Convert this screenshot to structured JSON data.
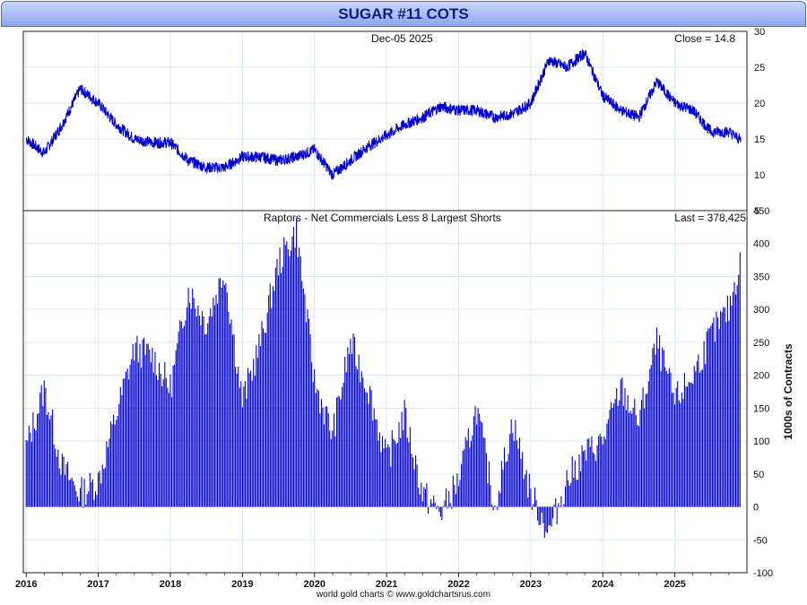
{
  "title": "SUGAR #11 COTS",
  "footer": "world gold charts © www.goldchartsrus.com",
  "colors": {
    "series": "#0000cc",
    "grid": "#d8e6f2",
    "title_bg": "#a9bcf5",
    "title_text": "#0b1c7a"
  },
  "chart_data": [
    {
      "type": "line",
      "title": "",
      "date_label": "Dec-05  2025",
      "last_label": "Close = 14.8",
      "ylim": [
        5,
        30
      ],
      "yticks": [
        "5",
        "10",
        "15",
        "20",
        "25",
        "30"
      ],
      "grid": true,
      "x": [
        "2016-01",
        "2016-04",
        "2016-07",
        "2016-10",
        "2017-01",
        "2017-04",
        "2017-07",
        "2017-10",
        "2018-01",
        "2018-04",
        "2018-07",
        "2018-10",
        "2019-01",
        "2019-04",
        "2019-07",
        "2019-10",
        "2020-01",
        "2020-04",
        "2020-07",
        "2020-10",
        "2021-01",
        "2021-04",
        "2021-07",
        "2021-10",
        "2022-01",
        "2022-04",
        "2022-07",
        "2022-10",
        "2023-01",
        "2023-04",
        "2023-07",
        "2023-10",
        "2024-01",
        "2024-04",
        "2024-07",
        "2024-10",
        "2025-01",
        "2025-04",
        "2025-07",
        "2025-10",
        "2025-12"
      ],
      "series": [
        {
          "values": [
            15,
            13,
            17,
            22,
            20,
            17,
            15,
            14.5,
            14.5,
            12,
            11,
            11,
            12.5,
            12.5,
            12,
            12.5,
            13.5,
            10,
            12,
            14,
            15.5,
            17,
            18,
            19.5,
            19,
            19,
            18,
            18.5,
            20,
            26,
            25,
            27,
            21,
            19,
            18,
            23,
            20,
            19,
            16,
            16,
            14.8
          ]
        }
      ]
    },
    {
      "type": "bar",
      "title": "Raptors - Net Commercials Less 8 Largest Shorts",
      "last_label": "Last = 378,425",
      "ylabel": "1000s of Contracts",
      "ylim": [
        -100,
        450
      ],
      "yticks": [
        "-100",
        "-50",
        "0",
        "50",
        "100",
        "150",
        "200",
        "250",
        "300",
        "350",
        "400",
        "450"
      ],
      "grid": true,
      "x": [
        "2016-01",
        "2016-04",
        "2016-07",
        "2016-10",
        "2017-01",
        "2017-04",
        "2017-07",
        "2017-10",
        "2018-01",
        "2018-04",
        "2018-07",
        "2018-10",
        "2019-01",
        "2019-04",
        "2019-07",
        "2019-10",
        "2020-01",
        "2020-04",
        "2020-07",
        "2020-10",
        "2021-01",
        "2021-04",
        "2021-07",
        "2021-10",
        "2022-01",
        "2022-04",
        "2022-07",
        "2022-10",
        "2023-01",
        "2023-04",
        "2023-07",
        "2023-10",
        "2024-01",
        "2024-04",
        "2024-07",
        "2024-10",
        "2025-01",
        "2025-04",
        "2025-07",
        "2025-10",
        "2025-12"
      ],
      "series": [
        {
          "values": [
            90,
            180,
            60,
            20,
            40,
            140,
            240,
            230,
            180,
            330,
            280,
            360,
            160,
            250,
            370,
            420,
            190,
            110,
            250,
            180,
            70,
            140,
            20,
            -10,
            40,
            150,
            0,
            130,
            20,
            -40,
            40,
            80,
            100,
            180,
            130,
            250,
            160,
            200,
            260,
            300,
            378
          ]
        }
      ]
    }
  ],
  "x_axis_labels": [
    "2016",
    "2017",
    "2018",
    "2019",
    "2020",
    "2021",
    "2022",
    "2023",
    "2024",
    "2025"
  ]
}
